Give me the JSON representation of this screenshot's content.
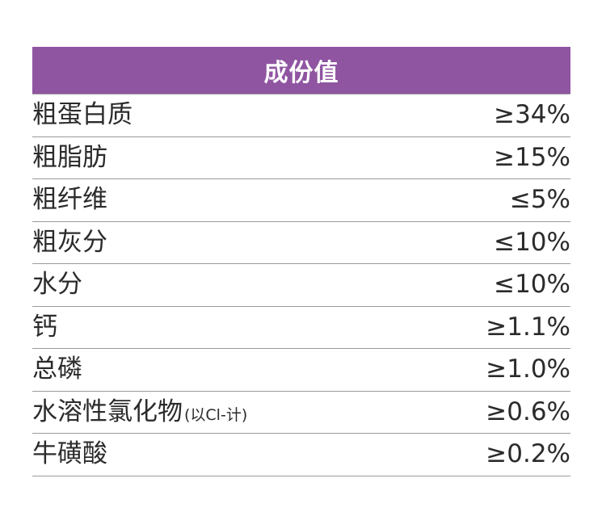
{
  "table": {
    "header": "成份值",
    "rows": [
      {
        "label": "粗蛋白质",
        "note": "",
        "value": "≥34%"
      },
      {
        "label": "粗脂肪",
        "note": "",
        "value": "≥15%"
      },
      {
        "label": "粗纤维",
        "note": "",
        "value": "≤5%"
      },
      {
        "label": "粗灰分",
        "note": "",
        "value": "≤10%"
      },
      {
        "label": "水分",
        "note": "",
        "value": "≤10%"
      },
      {
        "label": "钙",
        "note": "",
        "value": "≥1.1%"
      },
      {
        "label": "总磷",
        "note": "",
        "value": "≥1.0%"
      },
      {
        "label": "水溶性氯化物",
        "note": "(以Cl-计)",
        "value": "≥0.6%"
      },
      {
        "label": "牛磺酸",
        "note": "",
        "value": "≥0.2%"
      }
    ]
  }
}
